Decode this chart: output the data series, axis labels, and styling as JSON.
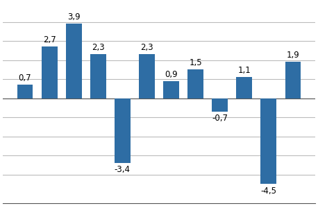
{
  "values": [
    0.7,
    2.7,
    3.9,
    2.3,
    -3.4,
    2.3,
    0.9,
    1.5,
    -0.7,
    1.1,
    -4.5,
    1.9
  ],
  "bar_color": "#2E6DA4",
  "ylim": [
    -5.5,
    5.0
  ],
  "yticks": [
    -4,
    -3,
    -2,
    -1,
    0,
    1,
    2,
    3,
    4
  ],
  "label_fontsize": 8.5,
  "background_color": "#ffffff",
  "grid_color": "#bbbbbb"
}
